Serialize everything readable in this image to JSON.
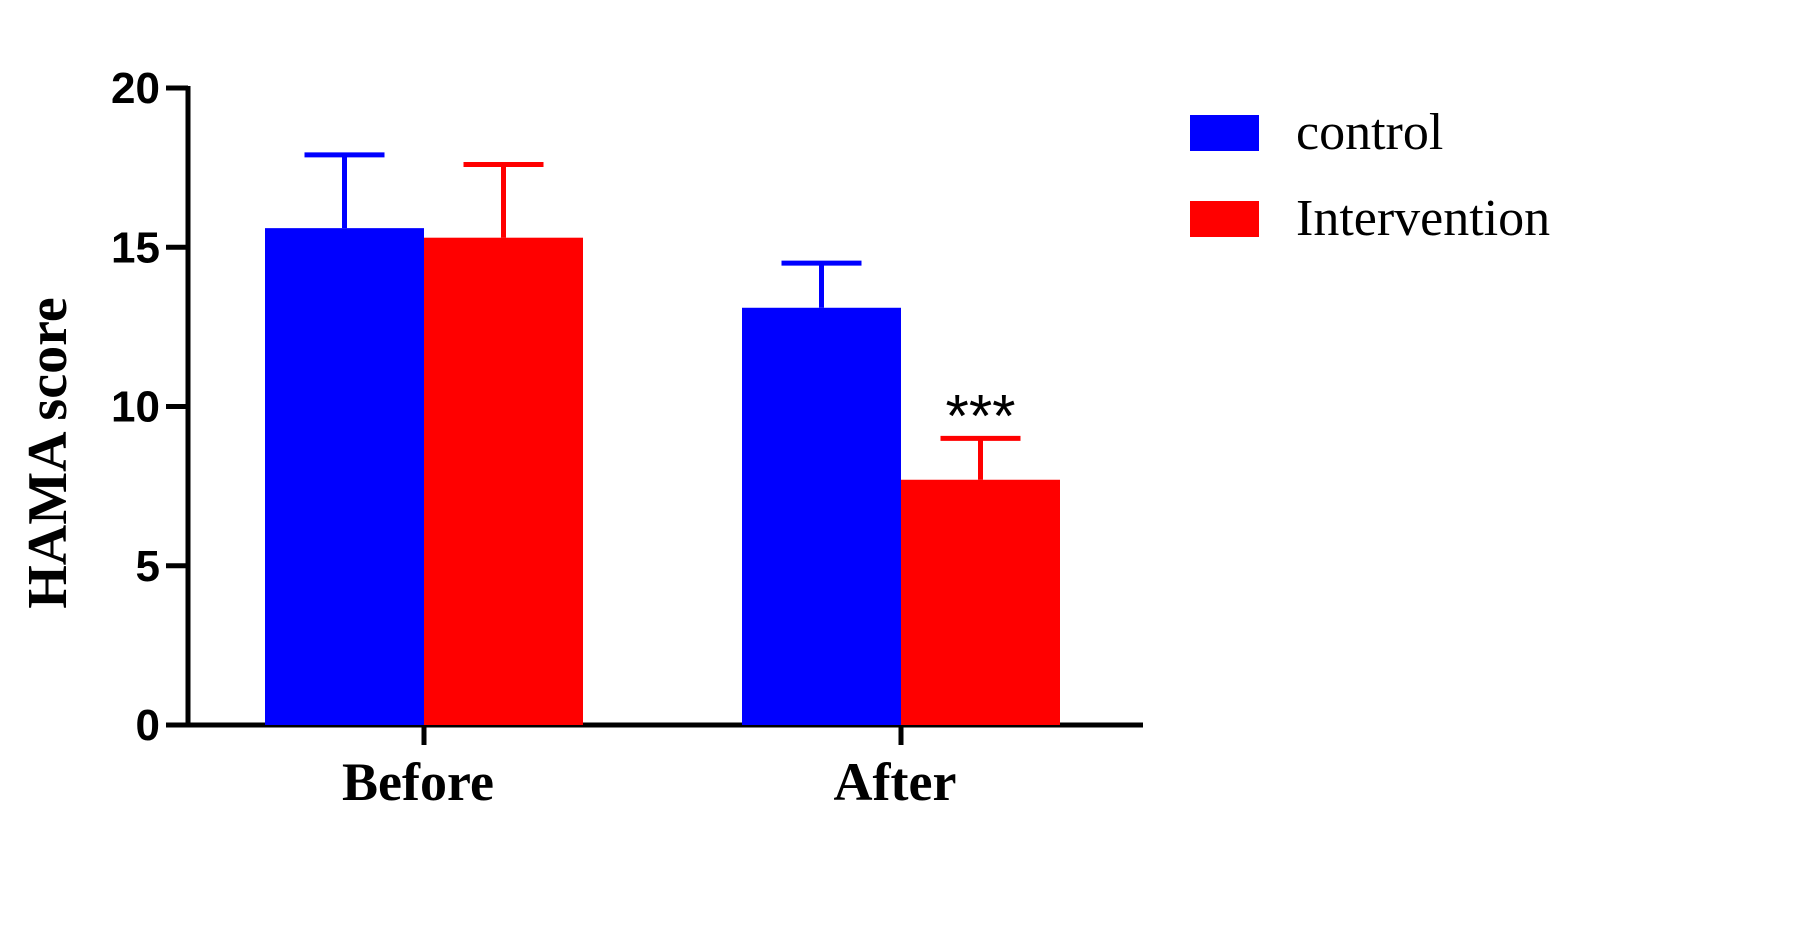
{
  "chart_data": {
    "type": "bar",
    "categories": [
      "Before",
      "After"
    ],
    "series": [
      {
        "name": "control",
        "color": "#0000ff",
        "values": [
          15.6,
          13.1
        ],
        "errors": [
          2.3,
          1.4
        ]
      },
      {
        "name": "Intervention",
        "color": "#ff0000",
        "values": [
          15.3,
          7.7
        ],
        "errors": [
          2.3,
          1.3
        ]
      }
    ],
    "ylabel": "HAMA score",
    "xlabel": "",
    "ylim": [
      0,
      20
    ],
    "yticks": [
      "0",
      "5",
      "10",
      "15",
      "20"
    ],
    "grid": false,
    "legend_position": "top-right",
    "annotations": [
      {
        "text": "***",
        "category": "After",
        "series": "Intervention"
      }
    ]
  }
}
